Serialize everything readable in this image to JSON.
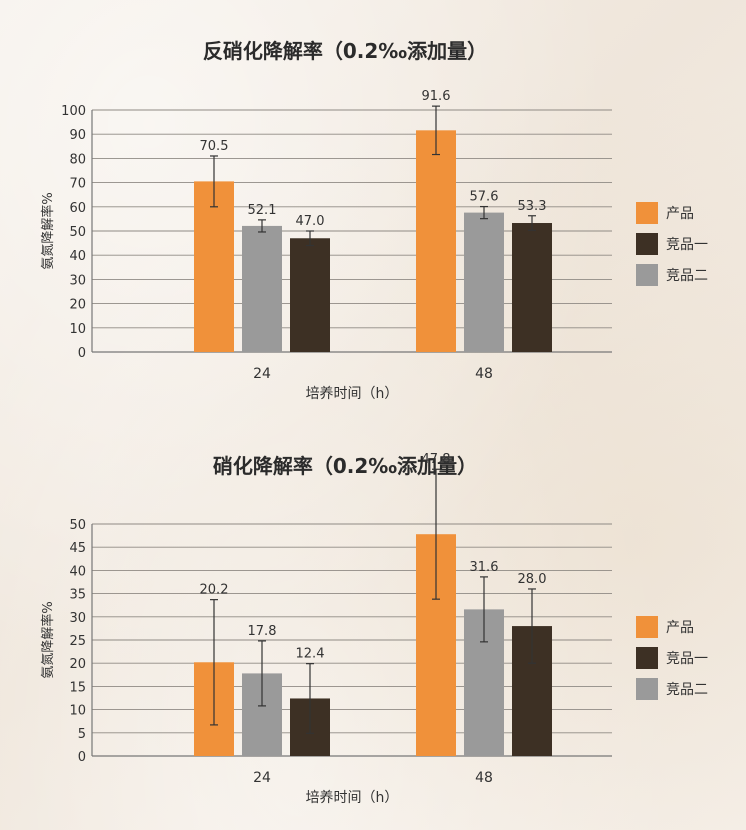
{
  "chart_data": [
    {
      "type": "bar",
      "title": "反硝化降解率（0.2‰添加量）",
      "xlabel": "培养时间（h）",
      "ylabel": "氨氮降解率%",
      "ylim": [
        0,
        100
      ],
      "ytick_step": 10,
      "grid": true,
      "legend_position": "right",
      "categories": [
        "24",
        "48"
      ],
      "series": [
        {
          "name": "产品",
          "color": "#f0913a",
          "values": [
            70.5,
            91.6
          ],
          "error": [
            10.5,
            10.0
          ]
        },
        {
          "name": "竞品二",
          "color": "#9a9a9a",
          "values": [
            52.1,
            57.6
          ],
          "error": [
            2.5,
            2.5
          ]
        },
        {
          "name": "竞品一",
          "color": "#3d3024",
          "values": [
            47.0,
            53.3
          ],
          "error": [
            3.0,
            3.0
          ]
        }
      ],
      "value_labels": [
        [
          "70.5",
          "91.6"
        ],
        [
          "52.1",
          "57.6"
        ],
        [
          "47.0",
          "53.3"
        ]
      ],
      "legend": [
        {
          "name": "产品",
          "color": "#f0913a"
        },
        {
          "name": "竞品一",
          "color": "#3d3024"
        },
        {
          "name": "竞品二",
          "color": "#9a9a9a"
        }
      ]
    },
    {
      "type": "bar",
      "title": "硝化降解率（0.2‰添加量）",
      "xlabel": "培养时间（h）",
      "ylabel": "氨氮降解率%",
      "ylim": [
        0,
        50
      ],
      "ytick_step": 5,
      "grid": true,
      "legend_position": "right",
      "categories": [
        "24",
        "48"
      ],
      "series": [
        {
          "name": "产品",
          "color": "#f0913a",
          "values": [
            20.2,
            47.8
          ],
          "error": [
            13.5,
            14.0
          ]
        },
        {
          "name": "竞品二",
          "color": "#9a9a9a",
          "values": [
            17.8,
            31.6
          ],
          "error": [
            7.0,
            7.0
          ]
        },
        {
          "name": "竞品一",
          "color": "#3d3024",
          "values": [
            12.4,
            28.0
          ],
          "error": [
            7.5,
            8.0
          ]
        }
      ],
      "value_labels": [
        [
          "20.2",
          "47.8"
        ],
        [
          "17.8",
          "31.6"
        ],
        [
          "12.4",
          "28.0"
        ]
      ],
      "legend": [
        {
          "name": "产品",
          "color": "#f0913a"
        },
        {
          "name": "竞品一",
          "color": "#3d3024"
        },
        {
          "name": "竞品二",
          "color": "#9a9a9a"
        }
      ]
    }
  ]
}
